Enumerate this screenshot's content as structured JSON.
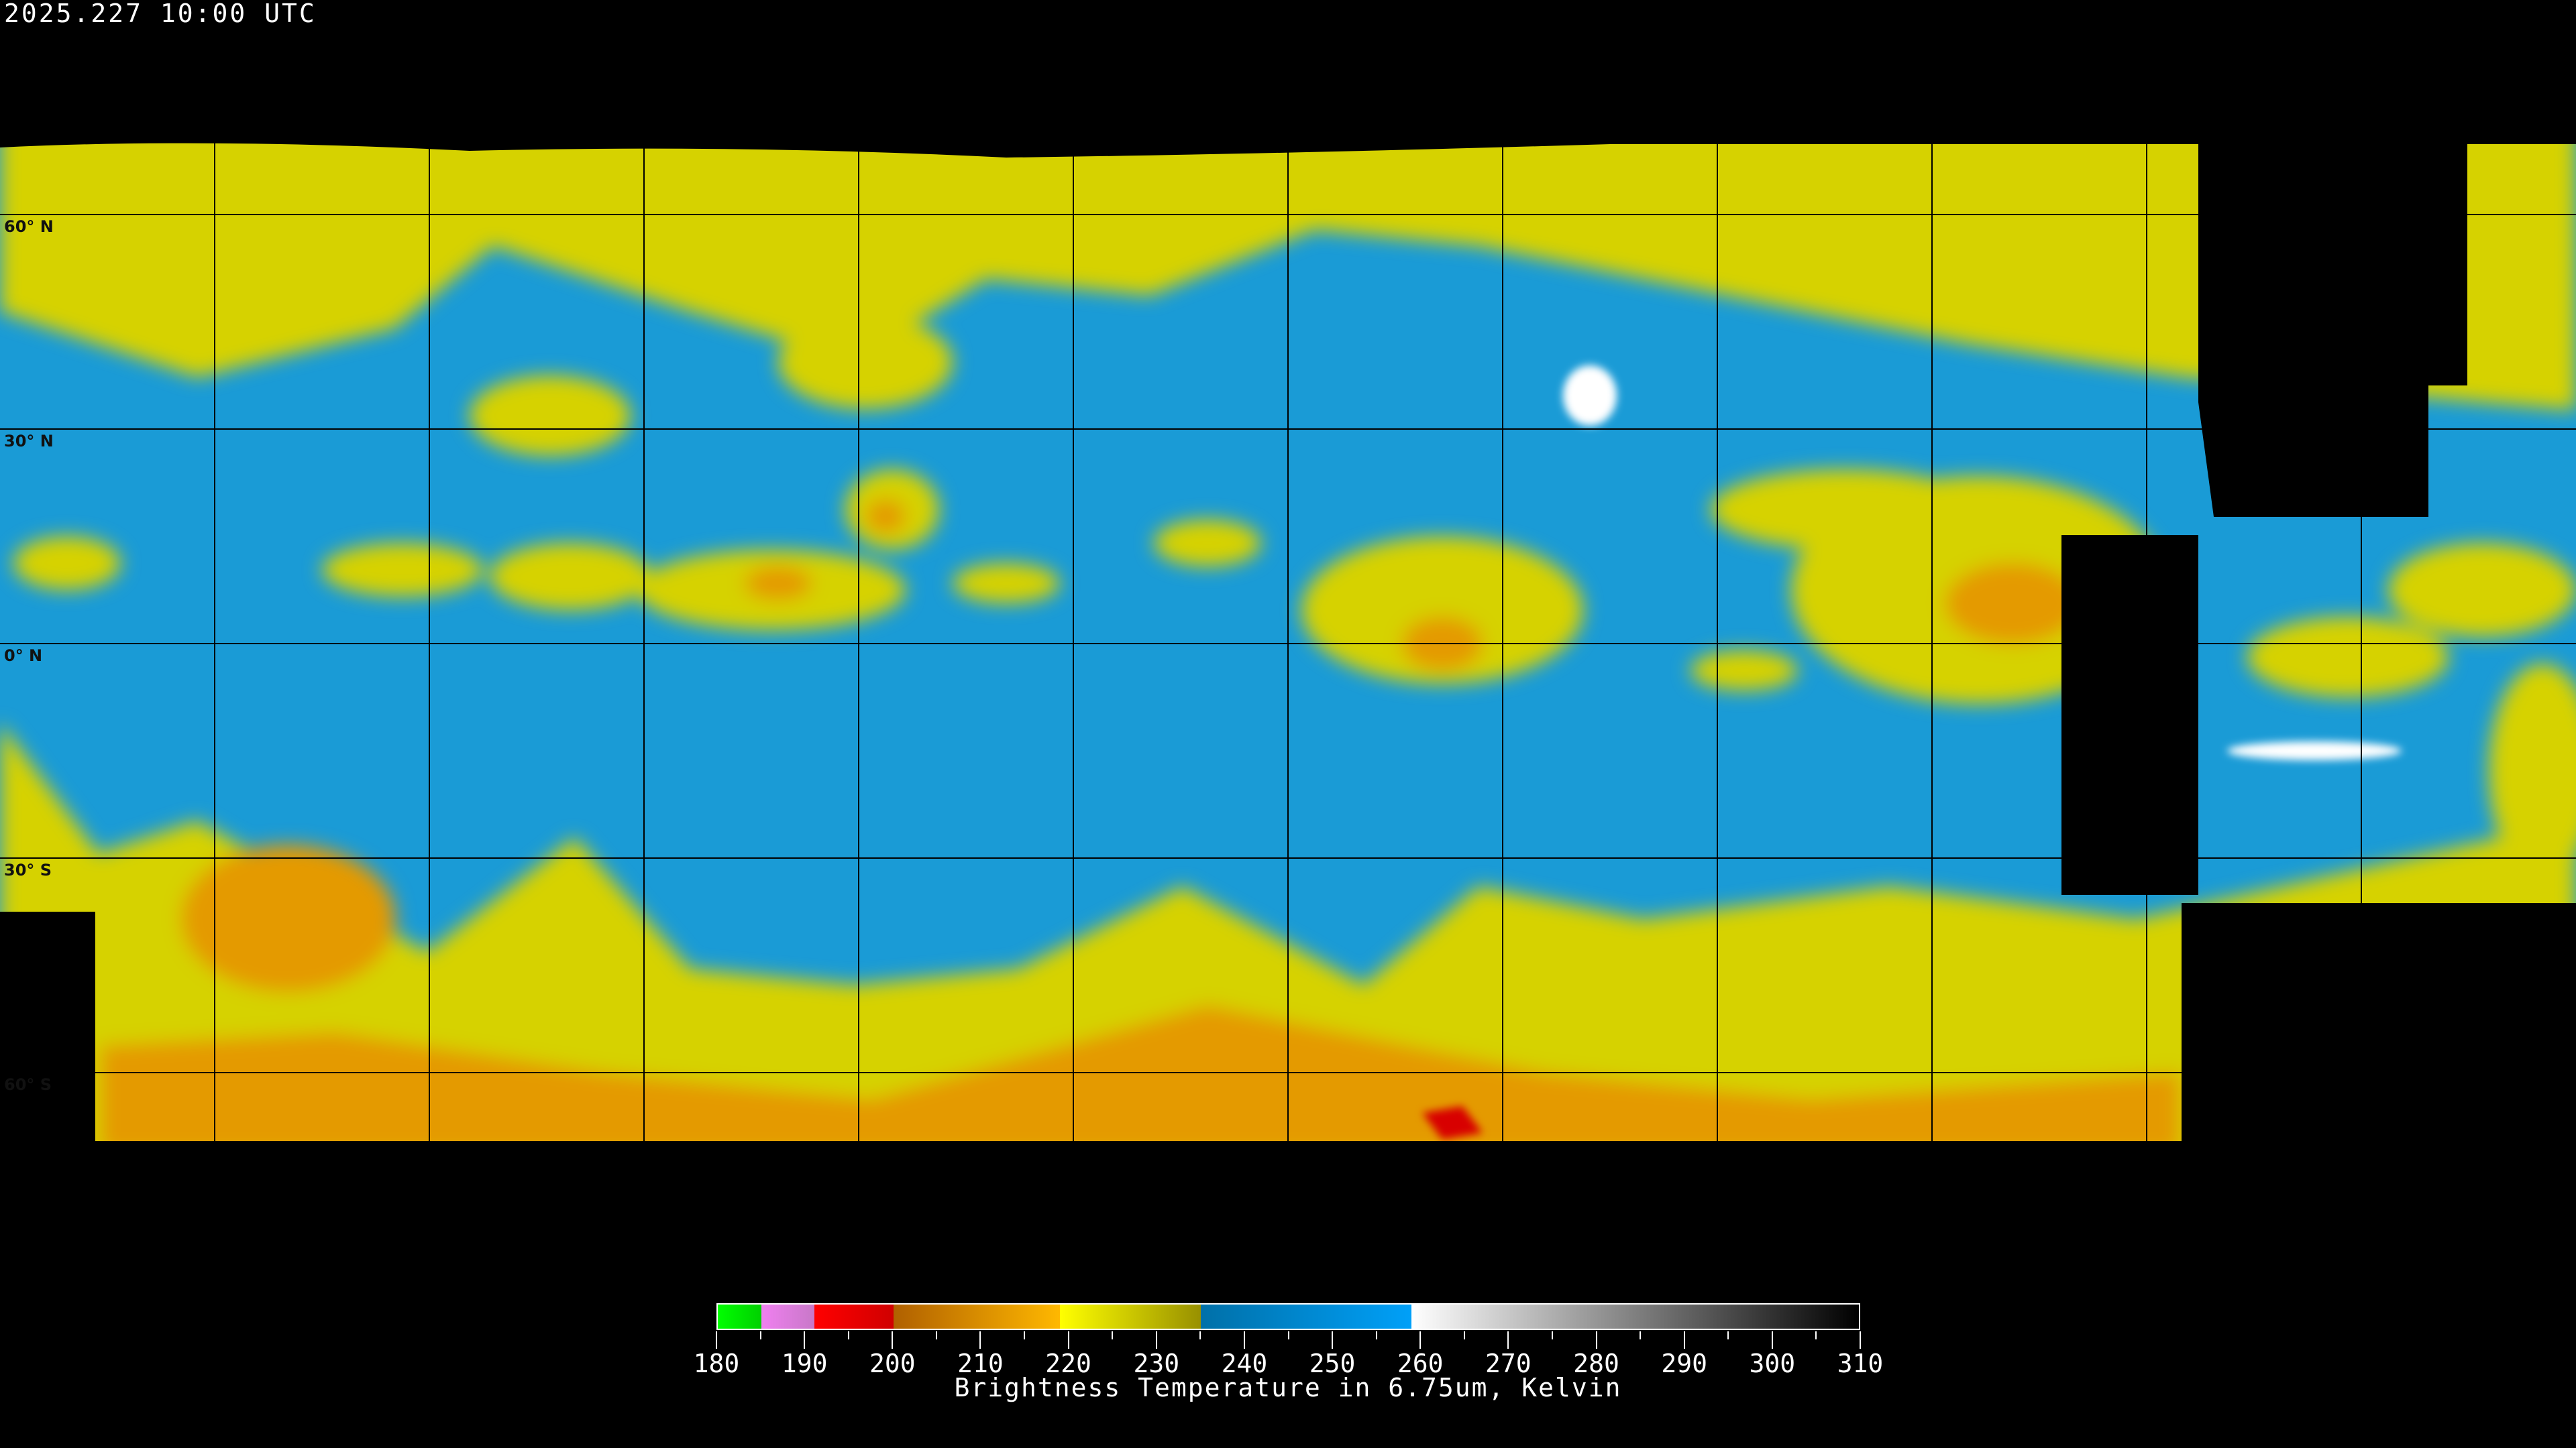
{
  "header": {
    "timestamp": "2025.227 10:00 UTC"
  },
  "map": {
    "projection": "equirectangular",
    "graticule_spacing_deg": 30,
    "lat_labels": [
      "60° N",
      "30° N",
      "0° N",
      "30° S",
      "60° S"
    ],
    "colors": {
      "blue_moist": "#1a9bd6",
      "yellow_dry": "#d6d200",
      "orange": "#e49a00",
      "red": "#d80000",
      "no_data": "#000000",
      "warm_white": "#ffffff"
    }
  },
  "colorbar": {
    "min": 180,
    "max": 310,
    "tick_labels": [
      "180",
      "190",
      "200",
      "210",
      "220",
      "230",
      "240",
      "250",
      "260",
      "270",
      "280",
      "290",
      "300",
      "310"
    ],
    "title": "Brightness Temperature in 6.75um, Kelvin",
    "segments": [
      {
        "from": 180,
        "to": 185,
        "start": "#00ff00",
        "end": "#00d000"
      },
      {
        "from": 185,
        "to": 191,
        "start": "#f080f0",
        "end": "#c878c8"
      },
      {
        "from": 191,
        "to": 200,
        "start": "#ff0000",
        "end": "#d00000"
      },
      {
        "from": 200,
        "to": 219,
        "start": "#b06000",
        "end": "#ffb800"
      },
      {
        "from": 219,
        "to": 235,
        "start": "#ffff00",
        "end": "#989000"
      },
      {
        "from": 235,
        "to": 259,
        "start": "#0070a8",
        "end": "#00a0f8"
      },
      {
        "from": 259,
        "to": 310,
        "start": "#ffffff",
        "end": "#000000"
      }
    ]
  }
}
